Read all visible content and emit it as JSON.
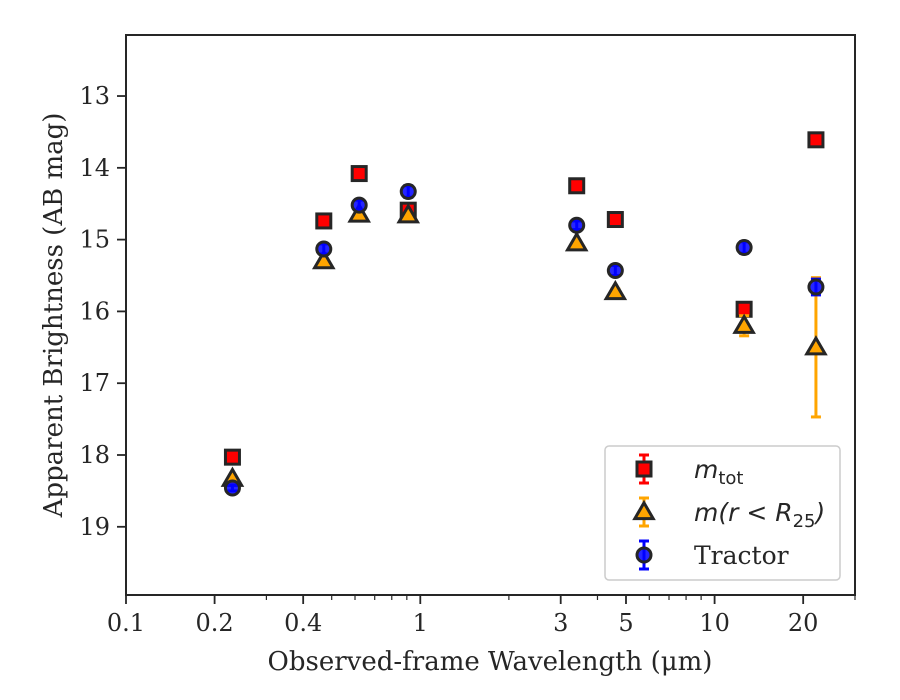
{
  "chart_data": {
    "type": "scatter",
    "title": "",
    "xlabel": "Observed-frame Wavelength (μm)",
    "ylabel": "Apparent Brightness (AB mag)",
    "xscale": "log",
    "xlim": [
      0.1,
      30
    ],
    "ylim": [
      19.95,
      12.15
    ],
    "y_inverted": true,
    "grid": false,
    "legend_position": "lower-right",
    "x_ticks": [
      0.1,
      0.2,
      0.4,
      1,
      3,
      5,
      10,
      20
    ],
    "x_tick_labels": [
      "0.1",
      "0.2",
      "0.4",
      "1",
      "3",
      "5",
      "10",
      "20"
    ],
    "y_ticks": [
      13,
      14,
      15,
      16,
      17,
      18,
      19
    ],
    "y_tick_labels": [
      "13",
      "14",
      "15",
      "16",
      "17",
      "18",
      "19"
    ],
    "series": [
      {
        "name": "m_tot",
        "legend_label": {
          "base": "m",
          "sub": "tot"
        },
        "marker": "square",
        "color": "#ff0000",
        "edge_color": "#262626",
        "x": [
          0.23,
          0.47,
          0.62,
          0.91,
          3.4,
          4.6,
          12.6,
          22.1
        ],
        "y": [
          18.03,
          14.74,
          14.08,
          14.59,
          14.25,
          14.72,
          15.97,
          13.61
        ],
        "yerr": [
          0.03,
          0.03,
          0.03,
          0.03,
          0.03,
          0.03,
          0.05,
          0.05
        ]
      },
      {
        "name": "m(r<R25)",
        "legend_label": {
          "base": "m(r < R",
          "sub": "25",
          "close": ")"
        },
        "marker": "triangle",
        "color": "#ffa500",
        "edge_color": "#262626",
        "x": [
          0.23,
          0.47,
          0.62,
          0.91,
          3.4,
          4.6,
          12.6,
          22.1
        ],
        "y": [
          18.33,
          15.3,
          14.65,
          14.66,
          15.05,
          15.73,
          16.2,
          16.5
        ],
        "yerr": [
          0.03,
          0.03,
          0.03,
          0.03,
          0.03,
          0.04,
          0.14,
          0.97
        ]
      },
      {
        "name": "Tractor",
        "marker": "circle",
        "color": "#0000ff",
        "edge_color": "#262626",
        "x": [
          0.23,
          0.47,
          0.62,
          0.91,
          3.4,
          4.6,
          12.6,
          22.1
        ],
        "y": [
          18.46,
          15.13,
          14.52,
          14.33,
          14.8,
          15.43,
          15.11,
          15.66
        ],
        "yerr": [
          0.04,
          0.07,
          0.07,
          0.08,
          0.06,
          0.07,
          0.08,
          0.11
        ]
      }
    ]
  }
}
